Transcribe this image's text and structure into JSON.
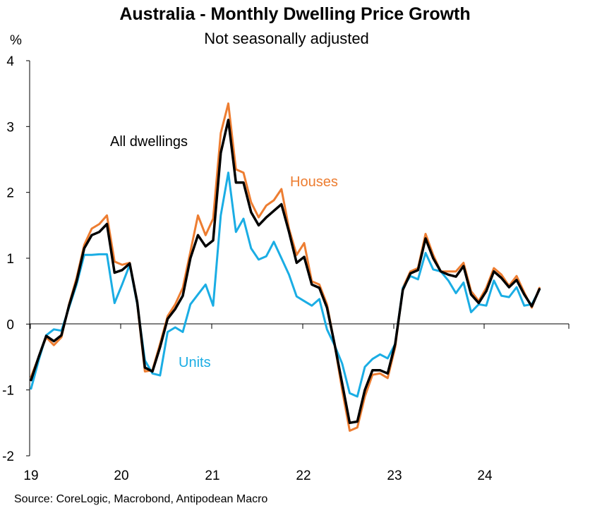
{
  "chart_data": {
    "type": "line",
    "title": "Australia - Monthly Dwelling Price Growth",
    "subtitle": "Not seasonally adjusted",
    "ylabel": "%",
    "xlabel": "",
    "ylim": [
      -2,
      4
    ],
    "yticks": [
      "4",
      "3",
      "2",
      "1",
      "0",
      "-1",
      "-2"
    ],
    "xticks": [
      "19",
      "20",
      "21",
      "22",
      "23",
      "24"
    ],
    "grid": false,
    "source": "Source: CoreLogic, Macrobond, Antipodean Macro",
    "annotations": {
      "all_dwellings": "All dwellings",
      "houses": "Houses",
      "units": "Units"
    },
    "series": [
      {
        "name": "Houses",
        "color": "#ED7D31",
        "values": [
          -0.8,
          -0.5,
          -0.2,
          -0.32,
          -0.2,
          0.3,
          0.7,
          1.2,
          1.45,
          1.52,
          1.65,
          0.95,
          0.9,
          0.93,
          0.3,
          -0.72,
          -0.7,
          -0.3,
          0.12,
          0.3,
          0.55,
          1.1,
          1.65,
          1.35,
          1.6,
          2.9,
          3.35,
          2.35,
          2.3,
          1.85,
          1.62,
          1.8,
          1.88,
          2.05,
          1.45,
          1.05,
          1.23,
          0.65,
          0.6,
          0.3,
          -0.3,
          -1.0,
          -1.62,
          -1.57,
          -1.1,
          -0.77,
          -0.75,
          -0.82,
          -0.35,
          0.55,
          0.8,
          0.85,
          1.37,
          1.05,
          0.8,
          0.8,
          0.8,
          0.93,
          0.5,
          0.35,
          0.55,
          0.85,
          0.75,
          0.58,
          0.73,
          0.48,
          0.25,
          0.55
        ]
      },
      {
        "name": "Units",
        "color": "#1AADE4",
        "values": [
          -0.98,
          -0.55,
          -0.17,
          -0.08,
          -0.1,
          0.25,
          0.6,
          1.05,
          1.05,
          1.06,
          1.06,
          0.32,
          0.6,
          0.9,
          0.3,
          -0.55,
          -0.75,
          -0.78,
          -0.12,
          -0.05,
          -0.12,
          0.3,
          0.45,
          0.6,
          0.28,
          1.65,
          2.3,
          1.4,
          1.6,
          1.15,
          0.98,
          1.03,
          1.25,
          1.0,
          0.75,
          0.42,
          0.35,
          0.28,
          0.38,
          -0.08,
          -0.32,
          -0.6,
          -1.05,
          -1.1,
          -0.65,
          -0.53,
          -0.46,
          -0.52,
          -0.3,
          0.55,
          0.73,
          0.68,
          1.08,
          0.83,
          0.8,
          0.66,
          0.47,
          0.63,
          0.18,
          0.3,
          0.28,
          0.66,
          0.43,
          0.41,
          0.56,
          0.28,
          0.3,
          0.52
        ]
      },
      {
        "name": "All dwellings",
        "color": "#000000",
        "values": [
          -0.85,
          -0.5,
          -0.18,
          -0.26,
          -0.17,
          0.28,
          0.65,
          1.15,
          1.35,
          1.4,
          1.52,
          0.78,
          0.82,
          0.92,
          0.33,
          -0.66,
          -0.72,
          -0.35,
          0.08,
          0.23,
          0.43,
          1.0,
          1.35,
          1.18,
          1.27,
          2.6,
          3.1,
          2.15,
          2.15,
          1.7,
          1.5,
          1.62,
          1.72,
          1.82,
          1.4,
          0.93,
          1.02,
          0.6,
          0.55,
          0.25,
          -0.3,
          -0.9,
          -1.5,
          -1.48,
          -1.0,
          -0.7,
          -0.7,
          -0.75,
          -0.3,
          0.52,
          0.77,
          0.82,
          1.3,
          1.0,
          0.8,
          0.75,
          0.72,
          0.88,
          0.45,
          0.32,
          0.5,
          0.8,
          0.7,
          0.56,
          0.67,
          0.45,
          0.27,
          0.53
        ]
      }
    ]
  }
}
